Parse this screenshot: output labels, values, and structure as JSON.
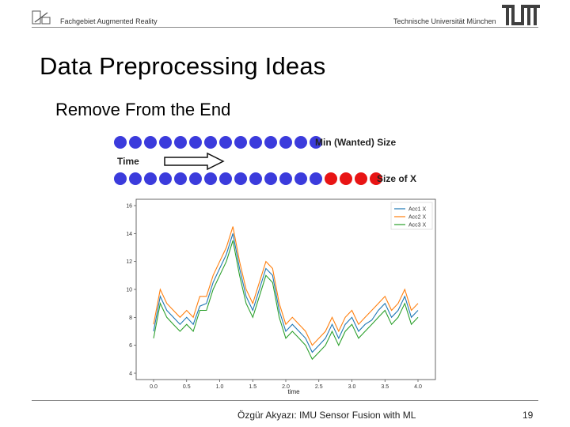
{
  "header": {
    "left_text": "Fachgebiet Augmented Reality",
    "right_text": "Technische Universität München"
  },
  "slide": {
    "title": "Data Preprocessing Ideas",
    "subtitle": "Remove From the End"
  },
  "diagram": {
    "top_row_label": "Min (Wanted) Size",
    "time_label": "Time",
    "bottom_row_label": "Size of X",
    "top_row_blue_count": 14,
    "bottom_row_blue_count": 14,
    "bottom_row_red_count": 4,
    "colors": {
      "blue": "#3b3bdc",
      "red": "#e81414"
    }
  },
  "chart_data": {
    "type": "line",
    "xlabel": "time",
    "xlim": [
      0.0,
      4.0
    ],
    "ylim": [
      4,
      16
    ],
    "x_ticks": [
      "0.0",
      "0.5",
      "1.0",
      "1.5",
      "2.0",
      "2.5",
      "3.0",
      "3.5",
      "4.0"
    ],
    "y_ticks": [
      "4",
      "6",
      "8",
      "10",
      "12",
      "14",
      "16"
    ],
    "x": [
      0.0,
      0.1,
      0.2,
      0.3,
      0.4,
      0.5,
      0.6,
      0.7,
      0.8,
      0.9,
      1.0,
      1.1,
      1.2,
      1.3,
      1.4,
      1.5,
      1.6,
      1.7,
      1.8,
      1.9,
      2.0,
      2.1,
      2.2,
      2.3,
      2.4,
      2.5,
      2.6,
      2.7,
      2.8,
      2.9,
      3.0,
      3.1,
      3.2,
      3.3,
      3.4,
      3.5,
      3.6,
      3.7,
      3.8,
      3.9,
      4.0
    ],
    "series": [
      {
        "name": "Acc1 X",
        "color": "#1f77b4",
        "values": [
          7.0,
          9.5,
          8.5,
          8.0,
          7.5,
          8.0,
          7.5,
          8.8,
          9.0,
          10.5,
          11.5,
          12.5,
          14.0,
          11.5,
          9.5,
          8.5,
          10.0,
          11.5,
          11.0,
          8.5,
          7.0,
          7.5,
          7.0,
          6.5,
          5.5,
          6.0,
          6.5,
          7.5,
          6.5,
          7.5,
          8.0,
          7.0,
          7.5,
          7.8,
          8.5,
          9.0,
          8.0,
          8.5,
          9.5,
          8.0,
          8.5
        ]
      },
      {
        "name": "Acc2 X",
        "color": "#ff7f0e",
        "values": [
          7.5,
          10.0,
          9.0,
          8.5,
          8.0,
          8.5,
          8.0,
          9.5,
          9.5,
          11.0,
          12.0,
          13.0,
          14.5,
          12.0,
          10.0,
          9.0,
          10.5,
          12.0,
          11.5,
          9.0,
          7.5,
          8.0,
          7.5,
          7.0,
          6.0,
          6.5,
          7.0,
          8.0,
          7.0,
          8.0,
          8.5,
          7.5,
          8.0,
          8.5,
          9.0,
          9.5,
          8.5,
          9.0,
          10.0,
          8.5,
          9.0
        ]
      },
      {
        "name": "Acc3 X",
        "color": "#2ca02c",
        "values": [
          6.5,
          9.0,
          8.0,
          7.5,
          7.0,
          7.5,
          7.0,
          8.5,
          8.5,
          10.0,
          11.0,
          12.0,
          13.5,
          11.0,
          9.0,
          8.0,
          9.5,
          11.0,
          10.5,
          8.0,
          6.5,
          7.0,
          6.5,
          6.0,
          5.0,
          5.5,
          6.0,
          7.0,
          6.0,
          7.0,
          7.5,
          6.5,
          7.0,
          7.5,
          8.0,
          8.5,
          7.5,
          8.0,
          9.0,
          7.5,
          8.0
        ]
      }
    ],
    "legend": "top-right",
    "grid": false
  },
  "footer": {
    "presenter": "Özgür Akyazı: IMU Sensor Fusion with ML",
    "page_number": "19"
  }
}
